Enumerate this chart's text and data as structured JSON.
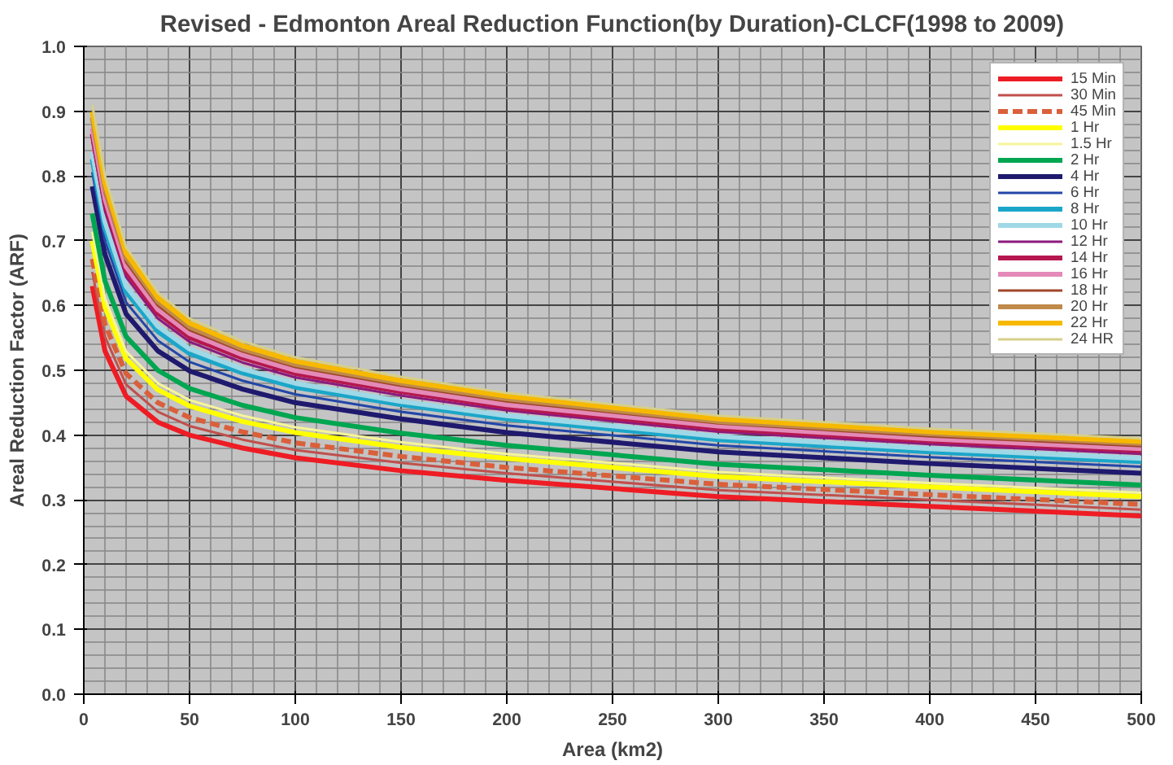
{
  "chart_data": {
    "type": "line",
    "title": "Revised - Edmonton Areal Reduction Function(by Duration)-CLCF(1998 to 2009)",
    "xlabel": "Area (km2)",
    "ylabel": "Areal Reduction Factor (ARF)",
    "x": [
      4,
      10,
      20,
      35,
      50,
      75,
      100,
      150,
      200,
      300,
      400,
      500
    ],
    "xlim": [
      0,
      500
    ],
    "xticks": [
      0,
      50,
      100,
      150,
      200,
      250,
      300,
      350,
      400,
      450,
      500
    ],
    "ylim": [
      0,
      1
    ],
    "yticks": [
      {
        "value": 0,
        "label": "0.0"
      },
      {
        "value": 0.1,
        "label": "0.1"
      },
      {
        "value": 0.2,
        "label": "0.2"
      },
      {
        "value": 0.3,
        "label": "0.3"
      },
      {
        "value": 0.4,
        "label": "0.4"
      },
      {
        "value": 0.5,
        "label": "0.5"
      },
      {
        "value": 0.6,
        "label": "0.6"
      },
      {
        "value": 0.7,
        "label": "0.7"
      },
      {
        "value": 0.8,
        "label": "0.8"
      },
      {
        "value": 0.9,
        "label": "0.9"
      },
      {
        "value": 1,
        "label": "1.0"
      }
    ],
    "grid": true,
    "legend": "top right",
    "marker": "none",
    "series": [
      {
        "name": "15 Min",
        "color": "#ee1c24",
        "values": [
          0.63,
          0.53,
          0.46,
          0.42,
          0.4,
          0.38,
          0.365,
          0.345,
          0.33,
          0.305,
          0.29,
          0.275
        ]
      },
      {
        "name": "30 Min",
        "color": "#c0504d",
        "values": [
          0.652,
          0.552,
          0.478,
          0.436,
          0.414,
          0.393,
          0.377,
          0.357,
          0.341,
          0.315,
          0.3,
          0.285
        ]
      },
      {
        "name": "45 Min",
        "color": "#d9603b",
        "line_style": "dashed",
        "values": [
          0.672,
          0.571,
          0.495,
          0.45,
          0.427,
          0.405,
          0.388,
          0.367,
          0.35,
          0.324,
          0.308,
          0.293
        ]
      },
      {
        "name": "1 Hr",
        "color": "#ffff00",
        "values": [
          0.7,
          0.598,
          0.518,
          0.47,
          0.445,
          0.421,
          0.404,
          0.381,
          0.364,
          0.336,
          0.32,
          0.305
        ]
      },
      {
        "name": "1.5 Hr",
        "color": "#f5f59a",
        "values": [
          0.714,
          0.611,
          0.529,
          0.48,
          0.454,
          0.43,
          0.412,
          0.389,
          0.371,
          0.343,
          0.326,
          0.311
        ]
      },
      {
        "name": "2 Hr",
        "color": "#00a650",
        "values": [
          0.742,
          0.638,
          0.552,
          0.5,
          0.472,
          0.446,
          0.427,
          0.403,
          0.384,
          0.355,
          0.338,
          0.323
        ]
      },
      {
        "name": "4 Hr",
        "color": "#1f1a6e",
        "values": [
          0.784,
          0.679,
          0.587,
          0.53,
          0.499,
          0.471,
          0.45,
          0.425,
          0.404,
          0.374,
          0.356,
          0.341
        ]
      },
      {
        "name": "6 Hr",
        "color": "#2347a8",
        "values": [
          0.806,
          0.7,
          0.605,
          0.546,
          0.513,
          0.484,
          0.463,
          0.436,
          0.415,
          0.384,
          0.366,
          0.351
        ]
      },
      {
        "name": "8 Hr",
        "color": "#1ba6c9",
        "values": [
          0.826,
          0.719,
          0.621,
          0.56,
          0.526,
          0.496,
          0.474,
          0.447,
          0.425,
          0.393,
          0.374,
          0.359
        ]
      },
      {
        "name": "10 Hr",
        "color": "#9fd8e6",
        "values": [
          0.837,
          0.73,
          0.63,
          0.568,
          0.533,
          0.502,
          0.48,
          0.452,
          0.43,
          0.398,
          0.379,
          0.364
        ]
      },
      {
        "name": "12 Hr",
        "color": "#8b1a7e",
        "values": [
          0.854,
          0.746,
          0.644,
          0.58,
          0.544,
          0.512,
          0.489,
          0.461,
          0.438,
          0.405,
          0.386,
          0.371
        ]
      },
      {
        "name": "14 Hr",
        "color": "#b5174f",
        "values": [
          0.865,
          0.757,
          0.653,
          0.588,
          0.551,
          0.519,
          0.495,
          0.467,
          0.443,
          0.41,
          0.391,
          0.376
        ]
      },
      {
        "name": "16 Hr",
        "color": "#e48ab8",
        "values": [
          0.874,
          0.765,
          0.66,
          0.594,
          0.557,
          0.524,
          0.5,
          0.471,
          0.447,
          0.414,
          0.394,
          0.379
        ]
      },
      {
        "name": "18 Hr",
        "color": "#a0462a",
        "values": [
          0.882,
          0.773,
          0.667,
          0.6,
          0.562,
          0.529,
          0.505,
          0.476,
          0.452,
          0.418,
          0.398,
          0.383
        ]
      },
      {
        "name": "20 Hr",
        "color": "#c08a4a",
        "values": [
          0.89,
          0.781,
          0.674,
          0.606,
          0.567,
          0.533,
          0.509,
          0.48,
          0.456,
          0.421,
          0.402,
          0.387
        ]
      },
      {
        "name": "22 Hr",
        "color": "#f7b900",
        "values": [
          0.899,
          0.789,
          0.681,
          0.612,
          0.573,
          0.538,
          0.514,
          0.484,
          0.46,
          0.425,
          0.405,
          0.39
        ]
      },
      {
        "name": "24 HR",
        "color": "#d6cf8a",
        "values": [
          0.91,
          0.8,
          0.69,
          0.62,
          0.58,
          0.545,
          0.52,
          0.49,
          0.465,
          0.43,
          0.41,
          0.395
        ]
      }
    ]
  }
}
